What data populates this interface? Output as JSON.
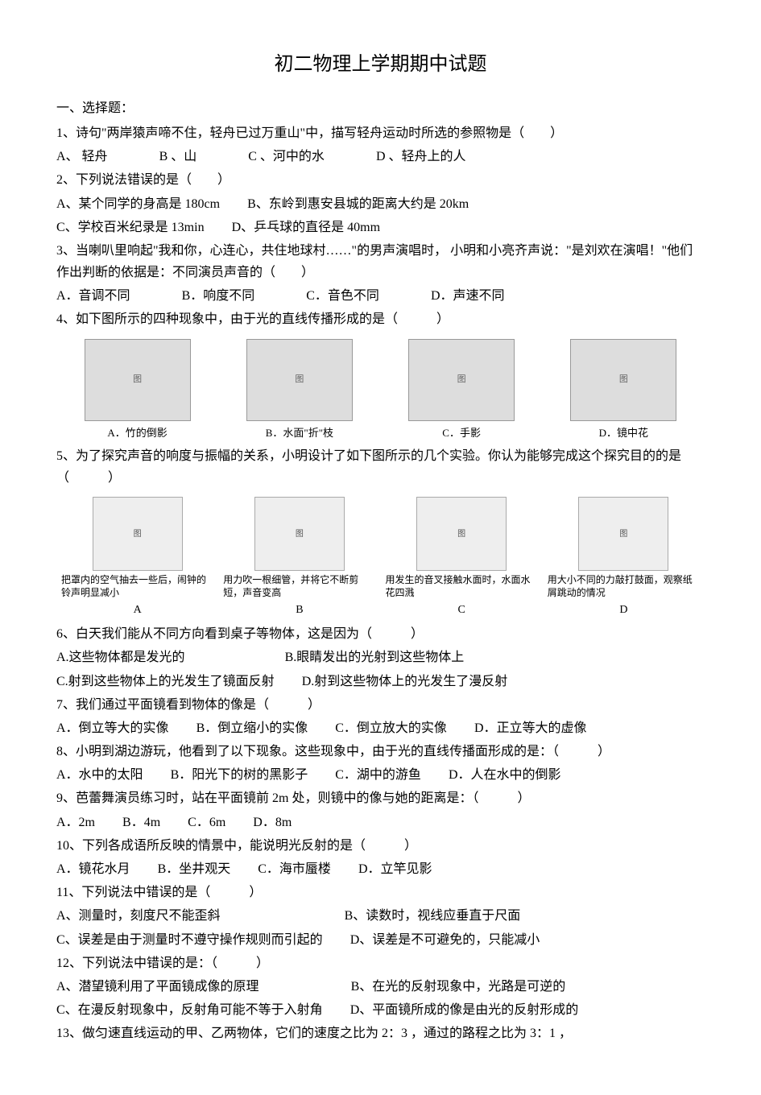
{
  "title": "初二物理上学期期中试题",
  "section1": "一、选择题：",
  "q1": "1、诗句\"两岸猿声啼不住，轻舟已过万重山\"中，描写轻舟运动时所选的参照物是（　　）",
  "q1o": {
    "a": "A、 轻舟",
    "b": "B 、山",
    "c": "C 、河中的水",
    "d": "D 、轻舟上的人"
  },
  "q2": "2、下列说法错误的是（　　）",
  "q2o": {
    "a": "A、某个同学的身高是 180cm",
    "b": "B、东岭到惠安县城的距离大约是 20km",
    "c": "C、学校百米纪录是 13min",
    "d": "D、乒乓球的直径是 40mm"
  },
  "q3a": "3、当喇叭里响起\"我和你，心连心，共住地球村……\"的男声演唱时， 小明和小亮齐声说：\"是刘欢在演唱！\"他们作出判断的依据是：不同演员声音的（　　）",
  "q3o": {
    "a": "A．音调不同",
    "b": "B．响度不同",
    "c": "C．音色不同",
    "d": "D．声速不同"
  },
  "q4": "4、如下图所示的四种现象中，由于光的直线传播形成的是（　　　）",
  "q4cap": {
    "a": "A．竹的倒影",
    "b": "B．水面\"折\"枝",
    "c": "C．手影",
    "d": "D．镜中花"
  },
  "q5": "5、为了探究声音的响度与振幅的关系，小明设计了如下图所示的几个实验。你认为能够完成这个探究目的的是（　　　）",
  "q5cap": {
    "a": "把罩内的空气抽去一些后，闹钟的铃声明显减小",
    "b": "用力吹一根细管，并将它不断剪短，声音变高",
    "c": "用发生的音叉接触水面时，水面水花四溅",
    "d": "用大小不同的力敲打鼓面，观察纸屑跳动的情况"
  },
  "q5lab": {
    "a": "A",
    "b": "B",
    "c": "C",
    "d": "D"
  },
  "q6": "6、白天我们能从不同方向看到桌子等物体，这是因为（　　　）",
  "q6o": {
    "a": "A.这些物体都是发光的",
    "b": "B.眼睛发出的光射到这些物体上",
    "c": "C.射到这些物体上的光发生了镜面反射",
    "d": "D.射到这些物体上的光发生了漫反射"
  },
  "q7": "7、我们通过平面镜看到物体的像是（　　　）",
  "q7o": {
    "a": "A．倒立等大的实像",
    "b": "B．倒立缩小的实像",
    "c": "C．倒立放大的实像",
    "d": "D．正立等大的虚像"
  },
  "q8": "8、小明到湖边游玩，他看到了以下现象。这些现象中，由于光的直线传播面形成的是：（　　　）",
  "q8o": {
    "a": "A．水中的太阳",
    "b": "B．阳光下的树的黑影子",
    "c": "C．湖中的游鱼",
    "d": "D．人在水中的倒影"
  },
  "q9": "9、芭蕾舞演员练习时，站在平面镜前 2m 处，则镜中的像与她的距离是：（　　　）",
  "q9o": {
    "a": "A．2m",
    "b": "B．4m",
    "c": "C．6m",
    "d": "D．8m"
  },
  "q10": "10、下列各成语所反映的情景中，能说明光反射的是（　　　）",
  "q10o": {
    "a": "A．镜花水月",
    "b": "B．坐井观天",
    "c": "C．海市蜃楼",
    "d": "D．立竿见影"
  },
  "q11": "11、下列说法中错误的是（　　　）",
  "q11o": {
    "a": "A、测量时，刻度尺不能歪斜",
    "b": "B、读数时，视线应垂直于尺面",
    "c": "C、误差是由于测量时不遵守操作规则而引起的",
    "d": "D、误差是不可避免的，只能减小"
  },
  "q12": "12、下列说法中错误的是：（　　　）",
  "q12o": {
    "a": "A、潜望镜利用了平面镜成像的原理",
    "b": "B、在光的反射现象中，光路是可逆的",
    "c": "C、在漫反射现象中，反射角可能不等于入射角",
    "d": "D、平面镜所成的像是由光的反射形成的"
  },
  "q13": "13、做匀速直线运动的甲、乙两物体，它们的速度之比为 2：3 ，通过的路程之比为 3：1 ，"
}
